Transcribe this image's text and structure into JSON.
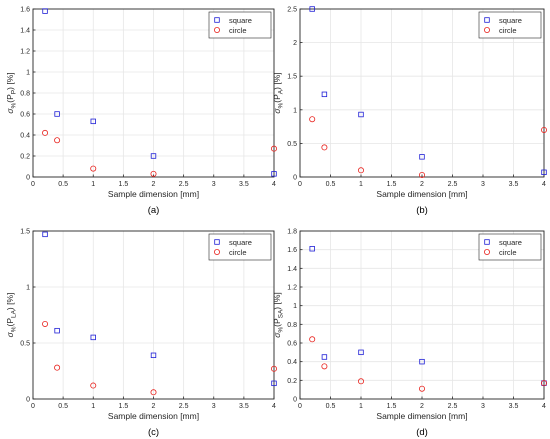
{
  "figure": {
    "series_names": [
      "square",
      "circle"
    ],
    "colors": {
      "square": "#1f1fd6",
      "circle": "#e8231e",
      "axis": "#262626",
      "grid": "#e6e6e6"
    }
  },
  "chart_data": [
    {
      "type": "scatter",
      "panel_label": "(a)",
      "xlabel": "Sample dimension [mm]",
      "ylabel": {
        "pre": "σ",
        "sub1": "%",
        "mid": "(P",
        "sub2": "P",
        "post": ") [%]"
      },
      "xlim": [
        0,
        4
      ],
      "ylim": [
        0,
        1.6
      ],
      "xticks": [
        "0",
        "0.5",
        "1",
        "1.5",
        "2",
        "2.5",
        "3",
        "3.5",
        "4"
      ],
      "yticks": [
        "0",
        "0.2",
        "0.4",
        "0.6",
        "0.8",
        "1",
        "1.2",
        "1.4",
        "1.6"
      ],
      "grid": true,
      "legend_position": "top-right",
      "x": [
        0.2,
        0.4,
        1,
        2,
        4
      ],
      "series": [
        {
          "name": "square",
          "marker": "square",
          "values": [
            1.58,
            0.6,
            0.53,
            0.2,
            0.03
          ]
        },
        {
          "name": "circle",
          "marker": "circle",
          "values": [
            0.42,
            0.35,
            0.08,
            0.03,
            0.27
          ]
        }
      ]
    },
    {
      "type": "scatter",
      "panel_label": "(b)",
      "xlabel": "Sample dimension [mm]",
      "ylabel": {
        "pre": "σ",
        "sub1": "%",
        "mid": "(P",
        "sub2": "A",
        "post": ") [%]"
      },
      "xlim": [
        0,
        4
      ],
      "ylim": [
        0,
        2.5
      ],
      "xticks": [
        "0",
        "0.5",
        "1",
        "1.5",
        "2",
        "2.5",
        "3",
        "3.5",
        "4"
      ],
      "yticks": [
        "0",
        "0.5",
        "1",
        "1.5",
        "2",
        "2.5"
      ],
      "grid": true,
      "legend_position": "top-right",
      "x": [
        0.2,
        0.4,
        1,
        2,
        4
      ],
      "series": [
        {
          "name": "square",
          "marker": "square",
          "values": [
            2.5,
            1.23,
            0.93,
            0.3,
            0.07
          ]
        },
        {
          "name": "circle",
          "marker": "circle",
          "values": [
            0.86,
            0.44,
            0.1,
            0.03,
            0.7
          ]
        }
      ]
    },
    {
      "type": "scatter",
      "panel_label": "(c)",
      "xlabel": "Sample dimension [mm]",
      "ylabel": {
        "pre": "σ",
        "sub1": "%",
        "mid": "(P",
        "sub2": "LA",
        "post": ") [%]"
      },
      "xlim": [
        0,
        4
      ],
      "ylim": [
        0,
        1.5
      ],
      "xticks": [
        "0",
        "0.5",
        "1",
        "1.5",
        "2",
        "2.5",
        "3",
        "3.5",
        "4"
      ],
      "yticks": [
        "0",
        "0.5",
        "1",
        "1.5"
      ],
      "grid": true,
      "legend_position": "top-right",
      "x": [
        0.2,
        0.4,
        1,
        2,
        4
      ],
      "series": [
        {
          "name": "square",
          "marker": "square",
          "values": [
            1.47,
            0.61,
            0.55,
            0.39,
            0.14
          ]
        },
        {
          "name": "circle",
          "marker": "circle",
          "values": [
            0.67,
            0.28,
            0.12,
            0.06,
            0.27
          ]
        }
      ]
    },
    {
      "type": "scatter",
      "panel_label": "(d)",
      "xlabel": "Sample dimension [mm]",
      "ylabel": {
        "pre": "σ",
        "sub1": "%",
        "mid": "(P",
        "sub2": "SA",
        "post": ") [%]"
      },
      "xlim": [
        0,
        4
      ],
      "ylim": [
        0,
        1.8
      ],
      "xticks": [
        "0",
        "0.5",
        "1",
        "1.5",
        "2",
        "2.5",
        "3",
        "3.5",
        "4"
      ],
      "yticks": [
        "0",
        "0.2",
        "0.4",
        "0.6",
        "0.8",
        "1",
        "1.2",
        "1.4",
        "1.6",
        "1.8"
      ],
      "grid": true,
      "legend_position": "top-right",
      "x": [
        0.2,
        0.4,
        1,
        2,
        4
      ],
      "series": [
        {
          "name": "square",
          "marker": "square",
          "values": [
            1.61,
            0.45,
            0.5,
            0.4,
            0.17
          ]
        },
        {
          "name": "circle",
          "marker": "circle",
          "values": [
            0.64,
            0.35,
            0.19,
            0.11,
            0.17
          ]
        }
      ]
    }
  ]
}
